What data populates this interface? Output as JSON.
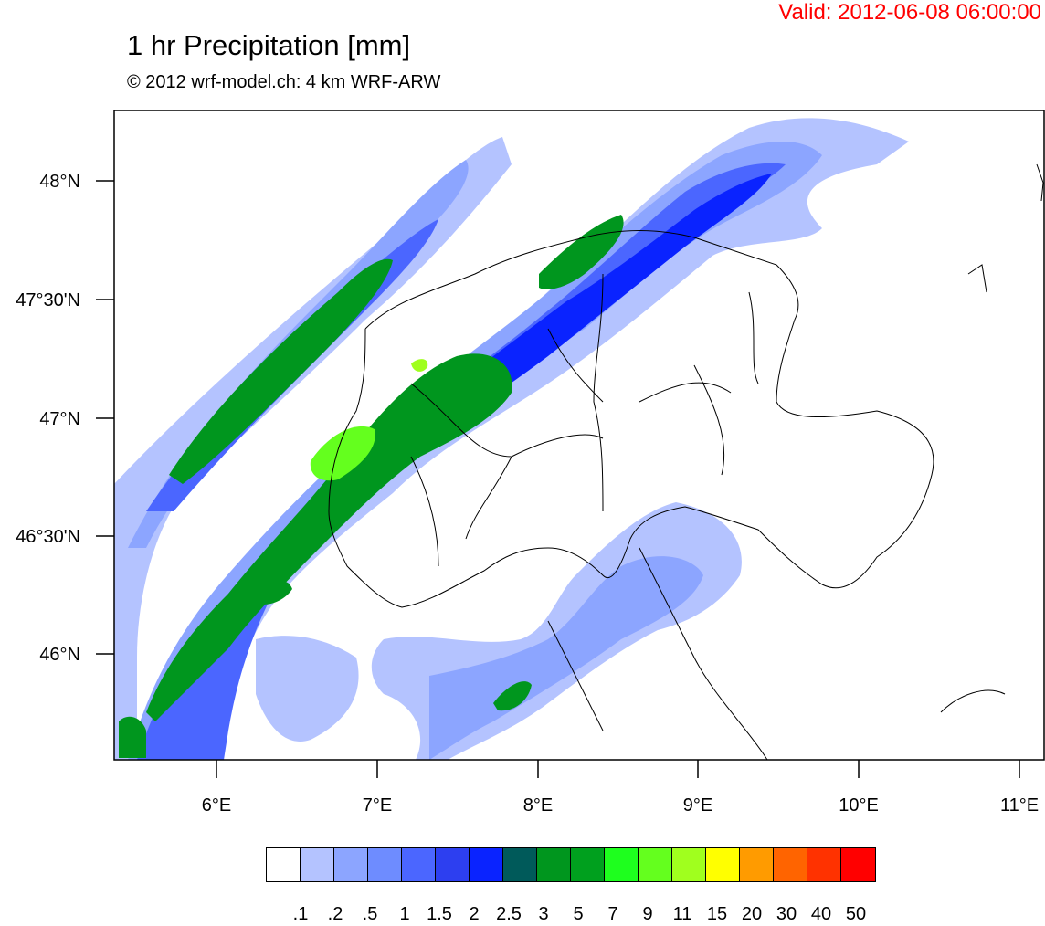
{
  "header": {
    "valid": "Valid: 2012-06-08 06:00:00",
    "title": "1 hr Precipitation [mm]",
    "subtitle": "© 2012 wrf-model.ch: 4 km WRF-ARW"
  },
  "axes": {
    "lat_ticks": [
      "48°N",
      "47°30'N",
      "47°N",
      "46°30'N",
      "46°N"
    ],
    "lon_ticks": [
      "6°E",
      "7°E",
      "8°E",
      "9°E",
      "10°E",
      "11°E"
    ]
  },
  "colorbar": {
    "labels": [
      ".1",
      ".2",
      ".5",
      "1",
      "1.5",
      "2",
      "2.5",
      "3",
      "5",
      "7",
      "9",
      "11",
      "15",
      "20",
      "30",
      "40",
      "50"
    ],
    "colors": [
      "#ffffff",
      "#b4c3ff",
      "#8ca5ff",
      "#6e8cff",
      "#4b66ff",
      "#2d3ff0",
      "#0a23ff",
      "#005a5a",
      "#00961e",
      "#00a01e",
      "#1eff1e",
      "#64ff1e",
      "#a0ff1e",
      "#ffff00",
      "#ff9b00",
      "#ff6400",
      "#ff3200",
      "#ff0000"
    ]
  }
}
